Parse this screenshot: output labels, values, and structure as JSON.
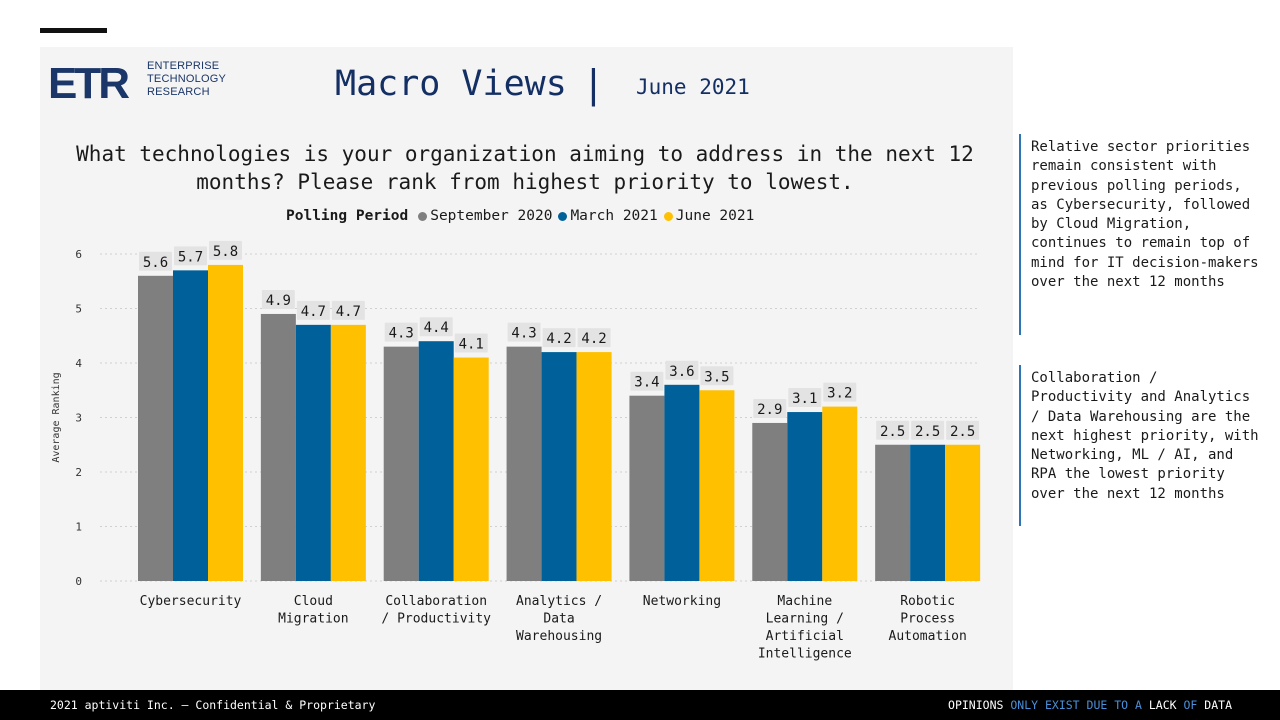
{
  "logo": {
    "mark": "ETR",
    "lines": [
      "ENTERPRISE",
      "TECHNOLOGY",
      "RESEARCH"
    ]
  },
  "header": {
    "title": "Macro Views",
    "separator": "|",
    "date": "June 2021"
  },
  "question": "What technologies is your organization aiming to address in the next 12 months? Please rank from highest priority to lowest.",
  "colors": {
    "sep2020": "#7f7f7f",
    "mar2021": "#00619a",
    "jun2021": "#ffc000",
    "label_bg": "#e3e3e3",
    "accent": "#2e75b6"
  },
  "chart_data": {
    "type": "bar",
    "legend_title": "Polling Period",
    "legend_position": "top",
    "ylabel": "Average Ranking",
    "xlabel": "",
    "ylim": [
      0,
      6
    ],
    "yticks": [
      "0",
      "1",
      "2",
      "3",
      "4",
      "5",
      "6"
    ],
    "grid": true,
    "categories": [
      [
        "Cybersecurity"
      ],
      [
        "Cloud",
        "Migration"
      ],
      [
        "Collaboration",
        "/ Productivity"
      ],
      [
        "Analytics /",
        "Data",
        "Warehousing"
      ],
      [
        "Networking"
      ],
      [
        "Machine",
        "Learning /",
        "Artificial",
        "Intelligence"
      ],
      [
        "Robotic",
        "Process",
        "Automation"
      ]
    ],
    "series": [
      {
        "name": "September 2020",
        "color": "#7f7f7f",
        "values": [
          5.6,
          4.9,
          4.3,
          4.3,
          3.4,
          2.9,
          2.5
        ],
        "labels": [
          "5.6",
          "4.9",
          "4.3",
          "4.3",
          "3.4",
          "2.9",
          "2.5"
        ]
      },
      {
        "name": "March 2021",
        "color": "#00619a",
        "values": [
          5.7,
          4.7,
          4.4,
          4.2,
          3.6,
          3.1,
          2.5
        ],
        "labels": [
          "5.7",
          "4.7",
          "4.4",
          "4.2",
          "3.6",
          "3.1",
          "2.5"
        ]
      },
      {
        "name": "June 2021",
        "color": "#ffc000",
        "values": [
          5.8,
          4.7,
          4.1,
          4.2,
          3.5,
          3.2,
          2.5
        ],
        "labels": [
          "5.8",
          "4.7",
          "4.1",
          "4.2",
          "3.5",
          "3.2",
          "2.5"
        ]
      }
    ]
  },
  "notes": [
    "Relative sector priorities remain consistent with previous polling periods, as Cybersecurity, followed by Cloud Migration, continues to remain top of mind for IT decision-makers over the next 12 months",
    "Collaboration / Productivity and Analytics / Data Warehousing are the next highest priority, with Networking, ML / AI, and RPA the lowest priority over the next 12 months"
  ],
  "footer": {
    "left": "2021 aptiviti Inc. – Confidential & Proprietary",
    "right": [
      "OPINIONS",
      "ONLY EXIST DUE TO A",
      "LACK",
      "OF",
      "DATA"
    ]
  }
}
